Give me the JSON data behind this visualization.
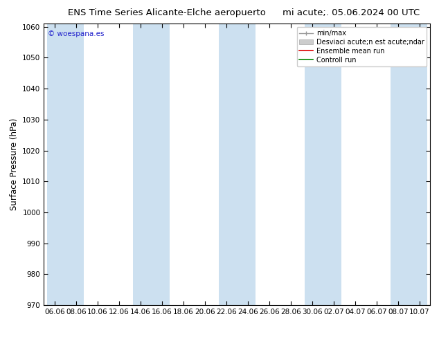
{
  "title_left": "ENS Time Series Alicante-Elche aeropuerto",
  "title_right": "mi acute;. 05.06.2024 00 UTC",
  "ylabel": "Surface Pressure (hPa)",
  "ylim": [
    970,
    1061
  ],
  "yticks": [
    970,
    980,
    990,
    1000,
    1010,
    1020,
    1030,
    1040,
    1050,
    1060
  ],
  "xtick_labels": [
    "06.06",
    "08.06",
    "10.06",
    "12.06",
    "14.06",
    "16.06",
    "18.06",
    "20.06",
    "22.06",
    "24.06",
    "26.06",
    "28.06",
    "30.06",
    "02.07",
    "04.07",
    "06.07",
    "08.07",
    "10.07"
  ],
  "n_xticks": 18,
  "shaded_xindices": [
    0,
    1,
    4,
    5,
    8,
    9,
    12,
    13,
    16,
    17
  ],
  "band_color": "#cce0f0",
  "background_color": "#ffffff",
  "copyright_text": "© woespana.es",
  "copyright_color": "#2222cc",
  "legend_labels": [
    "min/max",
    "Desviaci acute;n est acute;ndar",
    "Ensemble mean run",
    "Controll run"
  ],
  "legend_colors": [
    "#999999",
    "#cccccc",
    "#dd0000",
    "#008800"
  ],
  "title_fontsize": 9.5,
  "ylabel_fontsize": 8.5,
  "tick_fontsize": 7.5,
  "copyright_fontsize": 7.5,
  "legend_fontsize": 7
}
